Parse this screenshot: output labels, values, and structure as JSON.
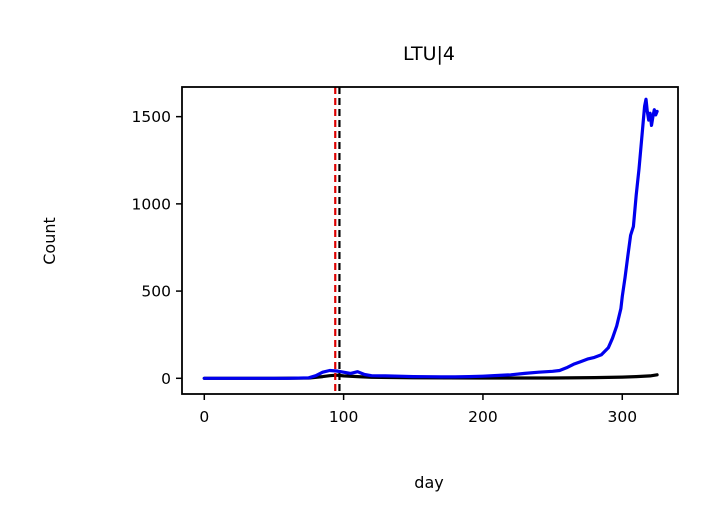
{
  "chart_data": {
    "type": "line",
    "title": "LTU|4",
    "xlabel": "day",
    "ylabel": "Count",
    "xlim": [
      -16,
      340
    ],
    "ylim": [
      -90,
      1670
    ],
    "xticks": [
      0,
      100,
      200,
      300
    ],
    "yticks": [
      0,
      500,
      1000,
      1500
    ],
    "xtick_labels": [
      "0",
      "100",
      "200",
      "300"
    ],
    "ytick_labels": [
      "0",
      "500",
      "1000",
      "1500"
    ],
    "grid": false,
    "vlines": [
      {
        "name": "red-dashed-line",
        "x": 94,
        "color": "#dd0000"
      },
      {
        "name": "black-dashed-line",
        "x": 97,
        "color": "#000000"
      }
    ],
    "series": [
      {
        "name": "blue-series",
        "color": "#0000ee",
        "x": [
          0,
          20,
          40,
          60,
          75,
          80,
          85,
          90,
          95,
          100,
          105,
          110,
          115,
          120,
          130,
          140,
          150,
          160,
          170,
          180,
          190,
          200,
          210,
          220,
          230,
          240,
          250,
          255,
          260,
          265,
          270,
          275,
          280,
          285,
          290,
          293,
          296,
          299,
          300,
          302,
          304,
          306,
          308,
          310,
          312,
          314,
          315,
          316,
          317,
          318,
          319,
          320,
          321,
          322,
          323,
          324,
          325
        ],
        "values": [
          0,
          0,
          0,
          0,
          3,
          15,
          35,
          45,
          42,
          35,
          28,
          38,
          22,
          15,
          14,
          12,
          10,
          9,
          8,
          8,
          10,
          12,
          16,
          20,
          28,
          35,
          40,
          45,
          60,
          80,
          95,
          110,
          120,
          135,
          175,
          230,
          300,
          400,
          470,
          580,
          700,
          820,
          870,
          1050,
          1200,
          1380,
          1470,
          1560,
          1600,
          1530,
          1480,
          1520,
          1450,
          1500,
          1540,
          1510,
          1530
        ]
      },
      {
        "name": "black-series",
        "color": "#000000",
        "x": [
          0,
          50,
          75,
          85,
          90,
          95,
          100,
          110,
          120,
          150,
          200,
          250,
          280,
          300,
          310,
          320,
          325
        ],
        "values": [
          0,
          0,
          2,
          10,
          15,
          18,
          14,
          10,
          6,
          3,
          2,
          2,
          4,
          7,
          10,
          14,
          20
        ]
      }
    ]
  }
}
